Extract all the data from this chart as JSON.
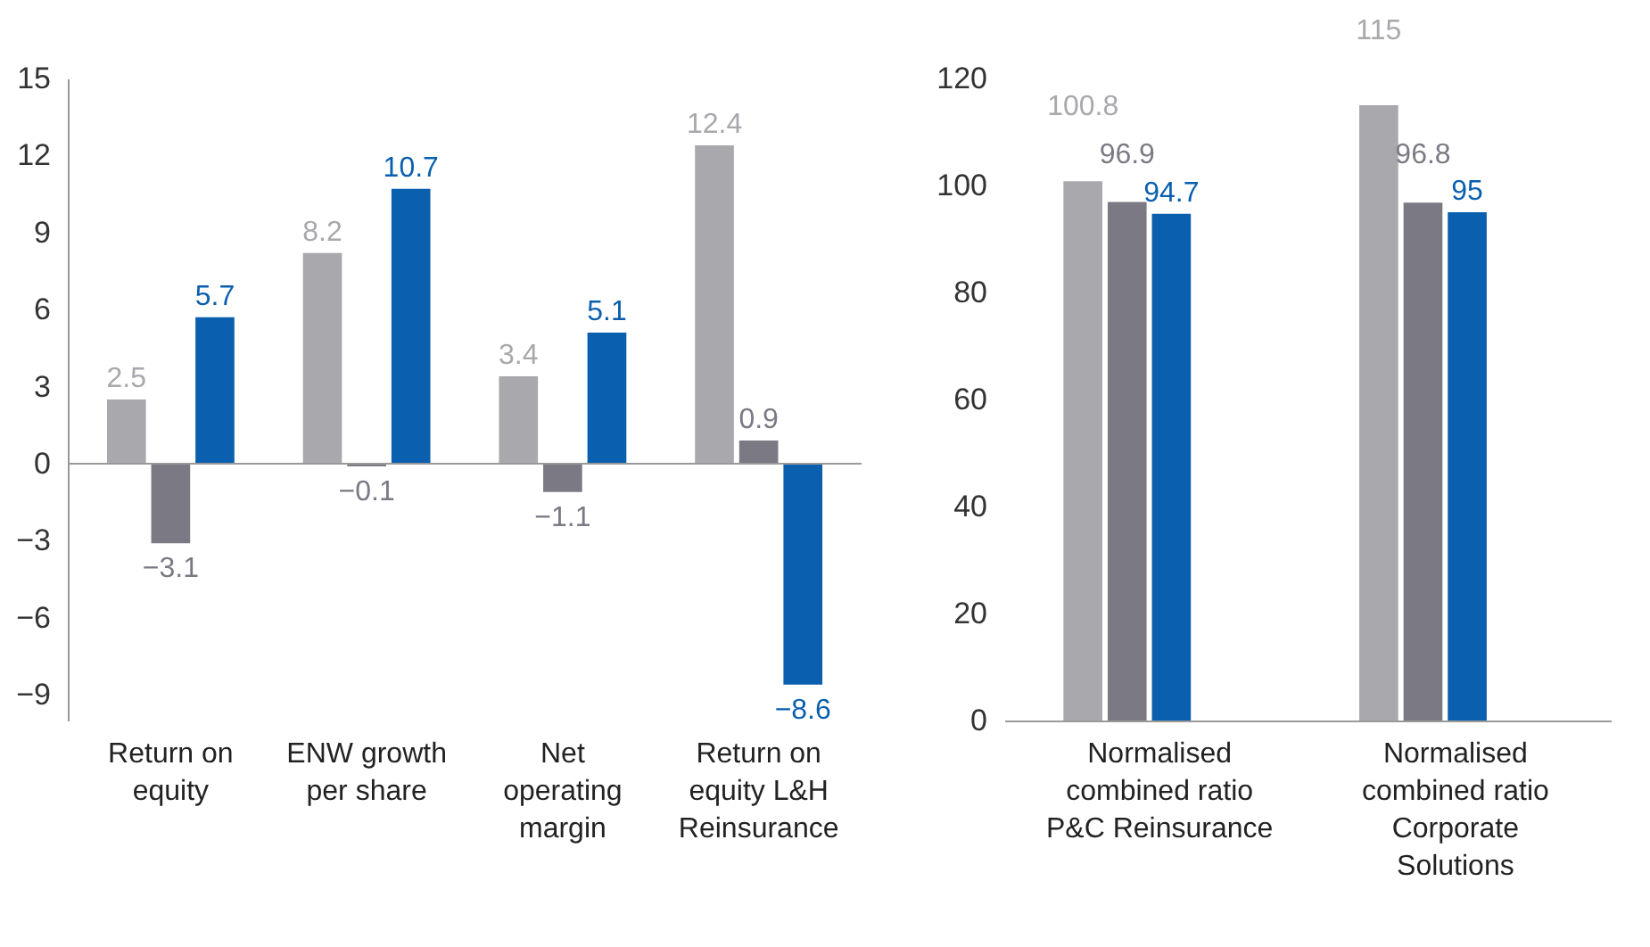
{
  "chart_data": [
    {
      "type": "bar",
      "categories": [
        "Return on equity",
        "ENW growth per share",
        "Net operating margin",
        "Return on equity L&H Reinsurance"
      ],
      "series": [
        {
          "color": "#a8a8ad",
          "values": [
            2.5,
            8.2,
            3.4,
            12.4
          ]
        },
        {
          "color": "#7b7a84",
          "values": [
            -3.1,
            -0.1,
            -1.1,
            0.9
          ]
        },
        {
          "color": "#0a5fae",
          "values": [
            5.7,
            10.7,
            5.1,
            -8.6
          ]
        }
      ],
      "ylim": [
        -10,
        15
      ],
      "yticks": [
        -9,
        -6,
        -3,
        0,
        3,
        6,
        9,
        12,
        15
      ],
      "data_labels": true,
      "grid": false,
      "ref_lines": [
        {
          "axis": "y",
          "value": 0,
          "label": null
        }
      ]
    },
    {
      "type": "bar",
      "categories": [
        "Normalised combined ratio P&C Reinsurance",
        "Normalised combined ratio Corporate Solutions"
      ],
      "series": [
        {
          "color": "#a8a8ad",
          "values": [
            100.8,
            115
          ]
        },
        {
          "color": "#7b7a84",
          "values": [
            96.9,
            96.8
          ]
        },
        {
          "color": "#0a5fae",
          "values": [
            94.7,
            95
          ]
        }
      ],
      "ylim": [
        0,
        120
      ],
      "yticks": [
        0,
        20,
        40,
        60,
        80,
        100,
        120
      ],
      "data_labels": true,
      "grid": false
    }
  ]
}
